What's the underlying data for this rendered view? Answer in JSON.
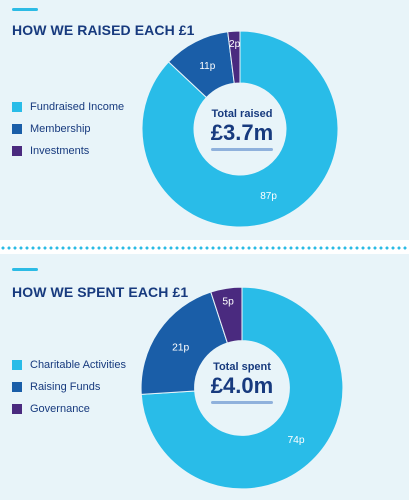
{
  "colors": {
    "fundraised": "#29bce8",
    "membership": "#1a5ea8",
    "investments": "#4a2a7f",
    "charitable": "#29bce8",
    "raising": "#1a5ea8",
    "governance": "#4a2a7f",
    "title": "#173a7e"
  },
  "raised": {
    "title": "HOW WE RAISED EACH £1",
    "center_label": "Total raised",
    "center_value": "£3.7m"
  },
  "spent": {
    "title": "HOW WE SPENT EACH £1",
    "center_label": "Total spent",
    "center_value": "£4.0m"
  },
  "chart_data": [
    {
      "type": "pie",
      "title": "HOW WE RAISED EACH £1",
      "categories": [
        "Fundraised Income",
        "Membership",
        "Investments"
      ],
      "values": [
        87,
        11,
        2
      ],
      "labels": [
        "87p",
        "11p",
        "2p"
      ],
      "colors": [
        "#29bce8",
        "#1a5ea8",
        "#4a2a7f"
      ],
      "legend": "left"
    },
    {
      "type": "pie",
      "title": "HOW WE SPENT EACH £1",
      "categories": [
        "Charitable Activities",
        "Raising Funds",
        "Governance"
      ],
      "values": [
        74,
        21,
        5
      ],
      "labels": [
        "74p",
        "21p",
        "5p"
      ],
      "colors": [
        "#29bce8",
        "#1a5ea8",
        "#4a2a7f"
      ],
      "legend": "left"
    }
  ]
}
